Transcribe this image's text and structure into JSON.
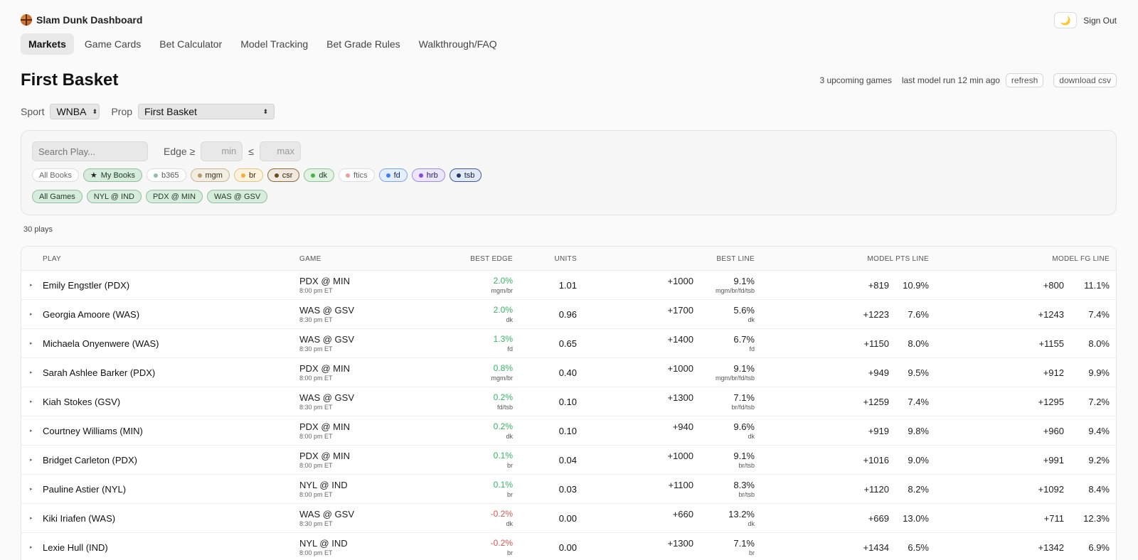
{
  "header": {
    "app_name": "Slam Dunk Dashboard",
    "theme_icon": "moon-icon",
    "sign_out": "Sign Out"
  },
  "tabs": [
    "Markets",
    "Game Cards",
    "Bet Calculator",
    "Model Tracking",
    "Bet Grade Rules",
    "Walkthrough/FAQ"
  ],
  "page": {
    "title": "First Basket",
    "upcoming": "3 upcoming games",
    "last_run": "last model run 12 min ago",
    "refresh": "refresh",
    "download": "download csv"
  },
  "selectors": {
    "sport_label": "Sport",
    "sport_value": "WNBA",
    "prop_label": "Prop",
    "prop_value": "First Basket"
  },
  "filters": {
    "search_placeholder": "Search Play...",
    "edge_label": "Edge ≥",
    "min_placeholder": "min",
    "le": "≤",
    "max_placeholder": "max",
    "books": [
      {
        "label": "All Books",
        "color": null,
        "style": "plain"
      },
      {
        "label": "My Books",
        "color": null,
        "style": "green-star"
      },
      {
        "label": "b365",
        "color": "#8fc0a0",
        "style": "b365"
      },
      {
        "label": "mgm",
        "color": "#b59a6a",
        "style": "mgm"
      },
      {
        "label": "br",
        "color": "#f0b040",
        "style": "br"
      },
      {
        "label": "csr",
        "color": "#6b4a1e",
        "style": "csr"
      },
      {
        "label": "dk",
        "color": "#4caf50",
        "style": "dk"
      },
      {
        "label": "ftics",
        "color": "#e8a0a0",
        "style": "ftics"
      },
      {
        "label": "fd",
        "color": "#3b82f6",
        "style": "fd"
      },
      {
        "label": "hrb",
        "color": "#7c4ddb",
        "style": "hrb"
      },
      {
        "label": "tsb",
        "color": "#1e3a6e",
        "style": "tsb"
      }
    ],
    "games": [
      "All Games",
      "NYL @ IND",
      "PDX @ MIN",
      "WAS @ GSV"
    ]
  },
  "plays_count": "30 plays",
  "table": {
    "headers": {
      "play": "PLAY",
      "game": "GAME",
      "best_edge": "BEST EDGE",
      "units": "UNITS",
      "best_line": "BEST LINE",
      "model_pts": "MODEL PTS LINE",
      "model_fg": "MODEL FG LINE"
    },
    "rows": [
      {
        "play": "Emily Engstler (PDX)",
        "game": "PDX @ MIN",
        "time": "8:00 pm ET",
        "edge": "2.0%",
        "edge_books": "mgm/br",
        "neg": false,
        "units": "1.01",
        "bl_odds": "+1000",
        "bl_pct": "9.1%",
        "bl_books": "mgm/br/fd/tsb",
        "mp_odds": "+819",
        "mp_pct": "10.9%",
        "mf_odds": "+800",
        "mf_pct": "11.1%"
      },
      {
        "play": "Georgia Amoore (WAS)",
        "game": "WAS @ GSV",
        "time": "8:30 pm ET",
        "edge": "2.0%",
        "edge_books": "dk",
        "neg": false,
        "units": "0.96",
        "bl_odds": "+1700",
        "bl_pct": "5.6%",
        "bl_books": "dk",
        "mp_odds": "+1223",
        "mp_pct": "7.6%",
        "mf_odds": "+1243",
        "mf_pct": "7.4%"
      },
      {
        "play": "Michaela Onyenwere (WAS)",
        "game": "WAS @ GSV",
        "time": "8:30 pm ET",
        "edge": "1.3%",
        "edge_books": "fd",
        "neg": false,
        "units": "0.65",
        "bl_odds": "+1400",
        "bl_pct": "6.7%",
        "bl_books": "fd",
        "mp_odds": "+1150",
        "mp_pct": "8.0%",
        "mf_odds": "+1155",
        "mf_pct": "8.0%"
      },
      {
        "play": "Sarah Ashlee Barker (PDX)",
        "game": "PDX @ MIN",
        "time": "8:00 pm ET",
        "edge": "0.8%",
        "edge_books": "mgm/br",
        "neg": false,
        "units": "0.40",
        "bl_odds": "+1000",
        "bl_pct": "9.1%",
        "bl_books": "mgm/br/fd/tsb",
        "mp_odds": "+949",
        "mp_pct": "9.5%",
        "mf_odds": "+912",
        "mf_pct": "9.9%"
      },
      {
        "play": "Kiah Stokes (GSV)",
        "game": "WAS @ GSV",
        "time": "8:30 pm ET",
        "edge": "0.2%",
        "edge_books": "fd/tsb",
        "neg": false,
        "units": "0.10",
        "bl_odds": "+1300",
        "bl_pct": "7.1%",
        "bl_books": "br/fd/tsb",
        "mp_odds": "+1259",
        "mp_pct": "7.4%",
        "mf_odds": "+1295",
        "mf_pct": "7.2%"
      },
      {
        "play": "Courtney Williams (MIN)",
        "game": "PDX @ MIN",
        "time": "8:00 pm ET",
        "edge": "0.2%",
        "edge_books": "dk",
        "neg": false,
        "units": "0.10",
        "bl_odds": "+940",
        "bl_pct": "9.6%",
        "bl_books": "dk",
        "mp_odds": "+919",
        "mp_pct": "9.8%",
        "mf_odds": "+960",
        "mf_pct": "9.4%"
      },
      {
        "play": "Bridget Carleton (PDX)",
        "game": "PDX @ MIN",
        "time": "8:00 pm ET",
        "edge": "0.1%",
        "edge_books": "br",
        "neg": false,
        "units": "0.04",
        "bl_odds": "+1000",
        "bl_pct": "9.1%",
        "bl_books": "br/tsb",
        "mp_odds": "+1016",
        "mp_pct": "9.0%",
        "mf_odds": "+991",
        "mf_pct": "9.2%"
      },
      {
        "play": "Pauline Astier (NYL)",
        "game": "NYL @ IND",
        "time": "8:00 pm ET",
        "edge": "0.1%",
        "edge_books": "br",
        "neg": false,
        "units": "0.03",
        "bl_odds": "+1100",
        "bl_pct": "8.3%",
        "bl_books": "br/tsb",
        "mp_odds": "+1120",
        "mp_pct": "8.2%",
        "mf_odds": "+1092",
        "mf_pct": "8.4%"
      },
      {
        "play": "Kiki Iriafen (WAS)",
        "game": "WAS @ GSV",
        "time": "8:30 pm ET",
        "edge": "-0.2%",
        "edge_books": "dk",
        "neg": true,
        "units": "0.00",
        "bl_odds": "+660",
        "bl_pct": "13.2%",
        "bl_books": "dk",
        "mp_odds": "+669",
        "mp_pct": "13.0%",
        "mf_odds": "+711",
        "mf_pct": "12.3%"
      },
      {
        "play": "Lexie Hull (IND)",
        "game": "NYL @ IND",
        "time": "8:00 pm ET",
        "edge": "-0.2%",
        "edge_books": "br",
        "neg": true,
        "units": "0.00",
        "bl_odds": "+1300",
        "bl_pct": "7.1%",
        "bl_books": "br",
        "mp_odds": "+1434",
        "mp_pct": "6.5%",
        "mf_odds": "+1342",
        "mf_pct": "6.9%"
      }
    ]
  }
}
